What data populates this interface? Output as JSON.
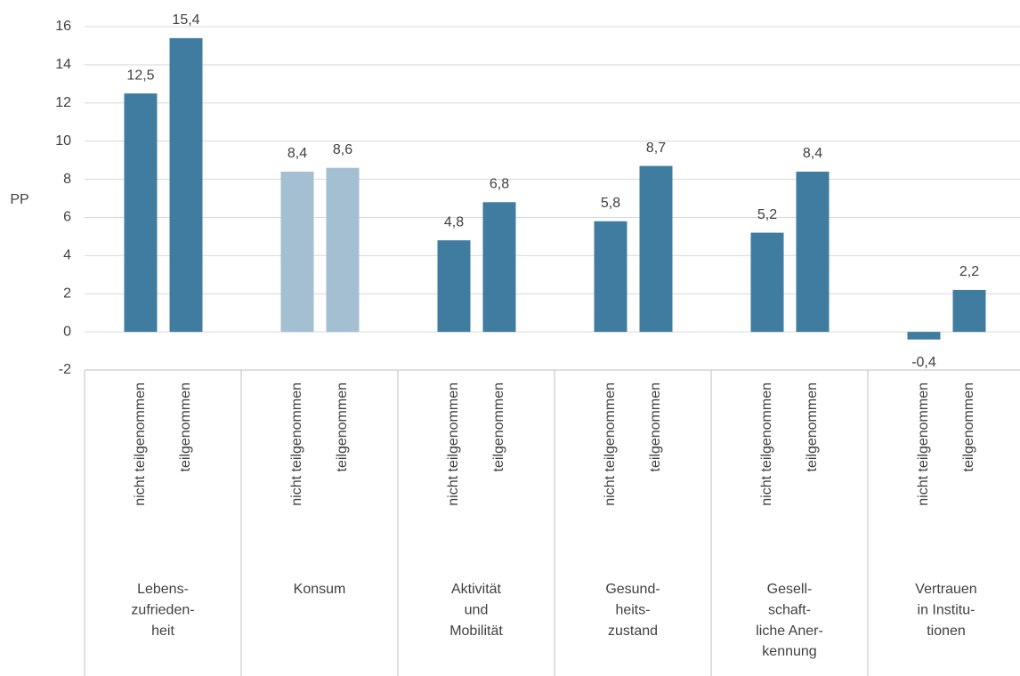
{
  "chart_data": {
    "type": "bar",
    "y_label": "PP",
    "group_labels": [
      [
        "Lebens-",
        "zufrieden-",
        "heit"
      ],
      [
        "Konsum"
      ],
      [
        "Aktivität",
        "und",
        "Mobilität"
      ],
      [
        "Gesund-",
        "heits-",
        "zustand"
      ],
      [
        "Gesell-",
        "schaft-",
        "liche Aner-",
        "kennung"
      ],
      [
        "Vertrauen",
        "in Institu-",
        "tionen"
      ]
    ],
    "series": [
      {
        "name": "nicht teilgenommen",
        "values": [
          12.5,
          8.4,
          4.8,
          5.8,
          5.2,
          -0.4
        ],
        "value_labels": [
          "12,5",
          "8,4",
          "4,8",
          "5,8",
          "5,2",
          "-0,4"
        ],
        "colors": [
          "#3f7ca0",
          "#a3bfd1",
          "#3f7ca0",
          "#3f7ca0",
          "#3f7ca0",
          "#3f7ca0"
        ]
      },
      {
        "name": "teilgenommen",
        "values": [
          15.4,
          8.6,
          6.8,
          8.7,
          8.4,
          2.2
        ],
        "value_labels": [
          "15,4",
          "8,6",
          "6,8",
          "8,7",
          "8,4",
          "2,2"
        ],
        "colors": [
          "#3f7ca0",
          "#a3bfd1",
          "#3f7ca0",
          "#3f7ca0",
          "#3f7ca0",
          "#3f7ca0"
        ]
      }
    ],
    "ylim": [
      -2,
      16
    ],
    "yticks": [
      -2,
      0,
      2,
      4,
      6,
      8,
      10,
      12,
      14,
      16
    ],
    "grid": true
  }
}
